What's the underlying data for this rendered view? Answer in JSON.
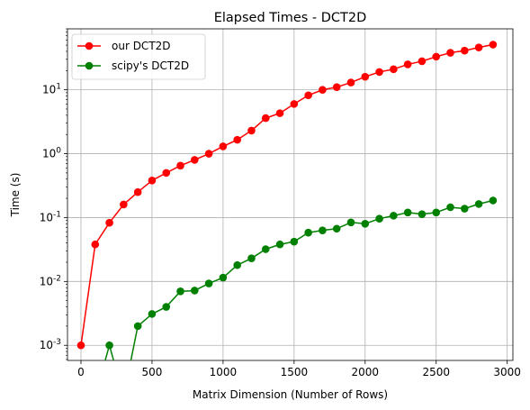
{
  "chart_data": {
    "type": "line",
    "title": "Elapsed Times - DCT2D",
    "xlabel": "Matrix Dimension (Number of Rows)",
    "ylabel": "Time (s)",
    "xlim": [
      -95,
      3040
    ],
    "ylim": [
      0.00058,
      90
    ],
    "yscale": "log",
    "grid": true,
    "legend_position": "top-left",
    "xticks": [
      0,
      500,
      1000,
      1500,
      2000,
      2500,
      3000
    ],
    "xtick_labels": [
      "0",
      "500",
      "1000",
      "1500",
      "2000",
      "2500",
      "3000"
    ],
    "yticks": [
      0.001,
      0.01,
      0.1,
      1,
      10
    ],
    "ytick_labels": [
      "10^-3",
      "10^-2",
      "10^-1",
      "10^0",
      "10^1"
    ],
    "series": [
      {
        "name": "our DCT2D",
        "color": "#ff0000",
        "x": [
          0,
          100,
          200,
          300,
          400,
          500,
          600,
          700,
          800,
          900,
          1000,
          1100,
          1200,
          1300,
          1400,
          1500,
          1600,
          1700,
          1800,
          1900,
          2000,
          2100,
          2200,
          2300,
          2400,
          2500,
          2600,
          2700,
          2800,
          2900
        ],
        "y": [
          0.001,
          0.038,
          0.083,
          0.16,
          0.25,
          0.38,
          0.5,
          0.65,
          0.8,
          1.0,
          1.3,
          1.65,
          2.3,
          3.6,
          4.3,
          6.0,
          8.2,
          10,
          11,
          13,
          16,
          19,
          21,
          25,
          28,
          33,
          38,
          41,
          46,
          51
        ]
      },
      {
        "name": "scipy's DCT2D",
        "color": "#008000",
        "x": [
          0,
          100,
          200,
          300,
          400,
          500,
          600,
          700,
          800,
          900,
          1000,
          1100,
          1200,
          1300,
          1400,
          1500,
          1600,
          1700,
          1800,
          1900,
          2000,
          2100,
          2200,
          2300,
          2400,
          2500,
          2600,
          2700,
          2800,
          2900
        ],
        "y": [
          0,
          0,
          0.001,
          0,
          0.002,
          0.0031,
          0.004,
          0.007,
          0.0072,
          0.0093,
          0.0115,
          0.018,
          0.023,
          0.032,
          0.038,
          0.042,
          0.058,
          0.063,
          0.067,
          0.084,
          0.08,
          0.096,
          0.107,
          0.12,
          0.113,
          0.12,
          0.145,
          0.138,
          0.163,
          0.185
        ]
      }
    ]
  }
}
